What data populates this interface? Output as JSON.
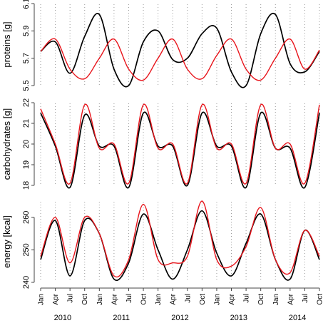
{
  "colors": {
    "series_black": "#000000",
    "series_red": "#e8141b",
    "grid": "#9b9b9b",
    "axis": "#444444"
  },
  "x_axis": {
    "month_labels": [
      "Jan",
      "Apr",
      "Jul",
      "Oct",
      "Jan",
      "Apr",
      "Jul",
      "Oct",
      "Jan",
      "Apr",
      "Jul",
      "Oct",
      "Jan",
      "Apr",
      "Jul",
      "Oct",
      "Jan",
      "Apr",
      "Jul",
      "Oct"
    ],
    "year_labels": [
      "2010",
      "2011",
      "2012",
      "2013",
      "2014"
    ]
  },
  "chart_data": [
    {
      "type": "line",
      "ylabel": "proteins [g]",
      "ylim": [
        5.5,
        6.1
      ],
      "yticks": [
        5.5,
        5.7,
        5.9,
        6.1
      ],
      "grid": "vertical dotted at each quarter",
      "x": [
        "2010-01",
        "2010-04",
        "2010-07",
        "2010-10",
        "2011-01",
        "2011-04",
        "2011-07",
        "2011-10",
        "2012-01",
        "2012-04",
        "2012-07",
        "2012-10",
        "2013-01",
        "2013-04",
        "2013-07",
        "2013-10",
        "2014-01",
        "2014-04",
        "2014-07",
        "2014-10"
      ],
      "series": [
        {
          "color": "#000000",
          "values": [
            5.75,
            5.82,
            5.59,
            5.86,
            6.02,
            5.62,
            5.5,
            5.82,
            5.9,
            5.69,
            5.7,
            5.88,
            5.92,
            5.6,
            5.5,
            5.88,
            6.02,
            5.66,
            5.6,
            5.75
          ]
        },
        {
          "color": "#e8141b",
          "values": [
            5.75,
            5.84,
            5.62,
            5.55,
            5.7,
            5.84,
            5.62,
            5.54,
            5.7,
            5.84,
            5.62,
            5.55,
            5.72,
            5.84,
            5.62,
            5.54,
            5.7,
            5.84,
            5.62,
            5.76
          ]
        }
      ]
    },
    {
      "type": "line",
      "ylabel": "carbohydrates [g]",
      "ylim": [
        18,
        22
      ],
      "yticks": [
        18,
        19,
        20,
        21,
        22
      ],
      "grid": "vertical dotted at each quarter",
      "x": [
        "2010-01",
        "2010-04",
        "2010-07",
        "2010-10",
        "2011-01",
        "2011-04",
        "2011-07",
        "2011-10",
        "2012-01",
        "2012-04",
        "2012-07",
        "2012-10",
        "2013-01",
        "2013-04",
        "2013-07",
        "2013-10",
        "2014-01",
        "2014-04",
        "2014-07",
        "2014-10"
      ],
      "series": [
        {
          "color": "#000000",
          "values": [
            21.5,
            19.9,
            17.9,
            21.4,
            19.9,
            19.9,
            17.9,
            21.5,
            19.9,
            19.9,
            18.0,
            21.5,
            19.9,
            19.9,
            17.9,
            21.5,
            19.8,
            19.8,
            17.9,
            21.5
          ]
        },
        {
          "color": "#e8141b",
          "values": [
            21.7,
            20.0,
            18.1,
            21.9,
            19.8,
            20.0,
            18.1,
            21.9,
            19.8,
            20.0,
            18.1,
            21.9,
            19.8,
            20.0,
            18.1,
            21.9,
            19.8,
            20.0,
            18.1,
            21.9
          ]
        }
      ]
    },
    {
      "type": "line",
      "ylabel": "energy [kcal]",
      "ylim": [
        240,
        265
      ],
      "yticks": [
        240,
        250,
        260
      ],
      "grid": "vertical dotted at each quarter",
      "x": [
        "2010-01",
        "2010-04",
        "2010-07",
        "2010-10",
        "2011-01",
        "2011-04",
        "2011-07",
        "2011-10",
        "2012-01",
        "2012-04",
        "2012-07",
        "2012-10",
        "2013-01",
        "2013-04",
        "2013-07",
        "2013-10",
        "2014-01",
        "2014-04",
        "2014-07",
        "2014-10"
      ],
      "series": [
        {
          "color": "#000000",
          "values": [
            247,
            259,
            242,
            259,
            255,
            241,
            246,
            261,
            250,
            241,
            250,
            262,
            249,
            242,
            252,
            261,
            247,
            241,
            256,
            247
          ]
        },
        {
          "color": "#e8141b",
          "values": [
            248,
            260,
            246,
            260,
            255,
            242,
            247,
            264,
            247,
            246,
            248,
            265,
            247,
            245,
            251,
            263,
            247,
            243,
            256,
            248
          ]
        }
      ]
    }
  ]
}
